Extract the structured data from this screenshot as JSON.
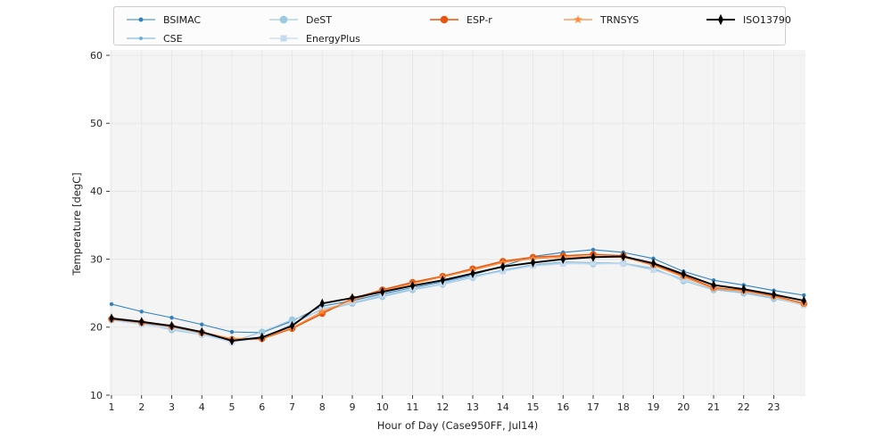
{
  "chart_data": {
    "type": "line",
    "title": "",
    "xlabel": "Hour of Day (Case950FF, Jul14)",
    "ylabel": "Temperature [degC]",
    "x": [
      1,
      2,
      3,
      4,
      5,
      6,
      7,
      8,
      9,
      10,
      11,
      12,
      13,
      14,
      15,
      16,
      17,
      18,
      19,
      20,
      21,
      22,
      23,
      24
    ],
    "xticks": [
      1,
      2,
      3,
      4,
      5,
      6,
      7,
      8,
      9,
      10,
      11,
      12,
      13,
      14,
      15,
      16,
      17,
      18,
      19,
      20,
      21,
      22,
      23
    ],
    "yticks": [
      10,
      20,
      30,
      40,
      50,
      60
    ],
    "xlim": [
      1,
      24
    ],
    "ylim": [
      10,
      60
    ],
    "grid": true,
    "legend_position": "top",
    "colors": {
      "plot_bg": "#f4f4f4",
      "grid": "#e7e7e8",
      "tick": "#262626",
      "legend_border": "#cccccc",
      "legend_bg": "#fcfcfc"
    },
    "series": [
      {
        "name": "BSIMAC",
        "color": "#3182bd",
        "marker": "point",
        "marker_size": 2.2,
        "line_width": 1.1,
        "values": [
          23.4,
          22.3,
          21.4,
          20.4,
          19.3,
          19.2,
          20.9,
          23.1,
          23.9,
          24.9,
          25.8,
          26.7,
          27.7,
          29.0,
          30.4,
          31.0,
          31.4,
          31.0,
          30.1,
          28.2,
          26.9,
          26.2,
          25.4,
          24.7
        ]
      },
      {
        "name": "CSE",
        "color": "#6baed6",
        "marker": "dot",
        "marker_size": 1.3,
        "line_width": 0.9,
        "values": [
          21.1,
          20.6,
          20.0,
          19.1,
          17.9,
          18.3,
          20.5,
          22.7,
          23.6,
          24.6,
          25.6,
          26.5,
          27.5,
          28.4,
          29.2,
          29.6,
          29.5,
          29.4,
          28.5,
          27.1,
          25.6,
          25.1,
          24.3,
          23.2
        ]
      },
      {
        "name": "DeST",
        "color": "#9ecae1",
        "marker": "circle",
        "marker_size": 3.8,
        "line_width": 1.2,
        "values": [
          21.2,
          20.6,
          19.6,
          18.9,
          17.9,
          19.3,
          21.1,
          22.4,
          23.5,
          24.5,
          25.5,
          26.3,
          27.3,
          28.3,
          29.1,
          29.4,
          29.3,
          29.4,
          28.7,
          26.8,
          25.5,
          25.0,
          24.2,
          23.3
        ]
      },
      {
        "name": "EnergyPlus",
        "color": "#c6dbef",
        "marker": "square",
        "marker_size": 3.1,
        "line_width": 1.2,
        "values": [
          21.0,
          20.4,
          19.8,
          18.9,
          17.8,
          18.4,
          20.4,
          22.6,
          23.7,
          24.7,
          25.7,
          26.4,
          27.4,
          28.2,
          29.0,
          29.3,
          29.4,
          29.3,
          28.4,
          27.0,
          25.7,
          25.2,
          24.4,
          23.2
        ]
      },
      {
        "name": "ESP-r",
        "color": "#e6550d",
        "marker": "circle",
        "marker_size": 3.7,
        "line_width": 1.5,
        "values": [
          21.2,
          20.7,
          20.1,
          19.2,
          18.2,
          18.3,
          19.8,
          22.0,
          24.2,
          25.5,
          26.6,
          27.5,
          28.6,
          29.7,
          30.3,
          30.5,
          30.7,
          30.5,
          29.2,
          27.6,
          25.8,
          25.4,
          24.6,
          23.5
        ]
      },
      {
        "name": "TRNSYS",
        "color": "#fd8d3c",
        "marker": "star",
        "marker_size": 4.4,
        "line_width": 1.3,
        "values": [
          21.3,
          20.8,
          20.1,
          19.3,
          18.3,
          18.4,
          19.9,
          22.3,
          24.0,
          25.3,
          26.4,
          27.4,
          28.4,
          29.5,
          30.1,
          30.3,
          30.4,
          30.3,
          29.1,
          27.4,
          25.7,
          25.3,
          24.5,
          23.4
        ]
      },
      {
        "name": "ISO13790",
        "color": "#000000",
        "marker": "thin-diamond",
        "marker_size": 4.2,
        "line_width": 1.9,
        "values": [
          21.3,
          20.8,
          20.2,
          19.3,
          18.0,
          18.5,
          20.2,
          23.5,
          24.3,
          25.2,
          26.1,
          26.9,
          27.9,
          28.9,
          29.5,
          30.0,
          30.3,
          30.4,
          29.4,
          27.8,
          26.2,
          25.6,
          24.8,
          23.9
        ]
      }
    ]
  }
}
